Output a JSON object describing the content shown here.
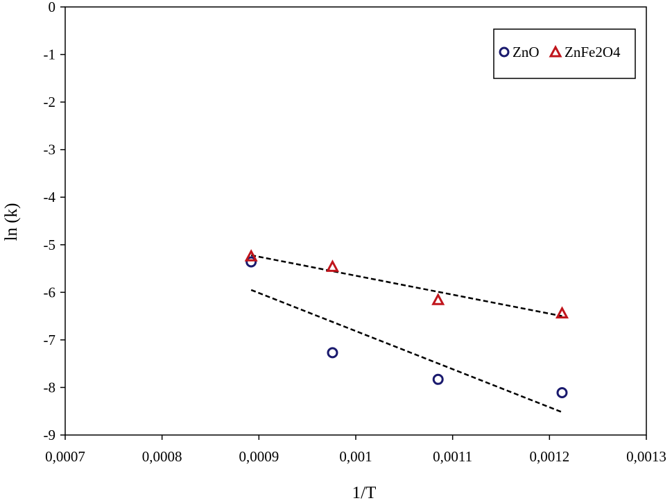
{
  "chart_data": {
    "type": "scatter",
    "title": "",
    "xlabel": "1/T",
    "ylabel": "ln (k)",
    "xlim": [
      0.0007,
      0.0013
    ],
    "ylim": [
      -9,
      0
    ],
    "grid": false,
    "legend_position": "top-right",
    "x_ticks": [
      0.0007,
      0.0008,
      0.0009,
      0.001,
      0.0011,
      0.0012,
      0.0013
    ],
    "x_tick_labels": [
      "0,0007",
      "0,0008",
      "0,0009",
      "0,001",
      "0,0011",
      "0,0012",
      "0,0013"
    ],
    "y_ticks": [
      0,
      -1,
      -2,
      -3,
      -4,
      -5,
      -6,
      -7,
      -8,
      -9
    ],
    "y_tick_labels": [
      "0",
      "-1",
      "-2",
      "-3",
      "-4",
      "-5",
      "-6",
      "-7",
      "-8",
      "-9"
    ],
    "series": [
      {
        "name": "ZnO",
        "marker": "circle-open",
        "color": "#1a1a6e",
        "x": [
          0.000892,
          0.000976,
          0.001085,
          0.001213
        ],
        "y": [
          -5.36,
          -7.27,
          -7.83,
          -8.11
        ],
        "trendline": {
          "x": [
            0.000892,
            0.001213
          ],
          "y": [
            -5.95,
            -8.52
          ]
        }
      },
      {
        "name": "ZnFe2O4",
        "marker": "triangle-open",
        "color": "#c0151c",
        "x": [
          0.000892,
          0.000976,
          0.001085,
          0.001213
        ],
        "y": [
          -5.24,
          -5.46,
          -6.16,
          -6.44
        ],
        "trendline": {
          "x": [
            0.000892,
            0.001213
          ],
          "y": [
            -5.22,
            -6.5
          ]
        }
      }
    ]
  }
}
